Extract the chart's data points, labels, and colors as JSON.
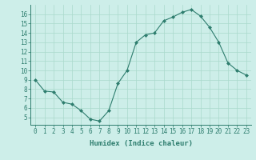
{
  "x": [
    0,
    1,
    2,
    3,
    4,
    5,
    6,
    7,
    8,
    9,
    10,
    11,
    12,
    13,
    14,
    15,
    16,
    17,
    18,
    19,
    20,
    21,
    22,
    23
  ],
  "y": [
    9.0,
    7.8,
    7.7,
    6.6,
    6.4,
    5.7,
    4.8,
    4.6,
    5.7,
    8.6,
    10.0,
    13.0,
    13.8,
    14.0,
    15.3,
    15.7,
    16.2,
    16.5,
    15.8,
    14.6,
    13.0,
    10.8,
    10.0,
    9.5
  ],
  "line_color": "#2e7d6e",
  "marker": "D",
  "marker_size": 2,
  "bg_color": "#cdeee9",
  "grid_color": "#aad9cc",
  "xlabel": "Humidex (Indice chaleur)",
  "xlim": [
    -0.5,
    23.5
  ],
  "ylim": [
    4.2,
    17.0
  ],
  "yticks": [
    5,
    6,
    7,
    8,
    9,
    10,
    11,
    12,
    13,
    14,
    15,
    16
  ],
  "xticks": [
    0,
    1,
    2,
    3,
    4,
    5,
    6,
    7,
    8,
    9,
    10,
    11,
    12,
    13,
    14,
    15,
    16,
    17,
    18,
    19,
    20,
    21,
    22,
    23
  ],
  "axis_color": "#2e7d6e",
  "label_fontsize": 6.5,
  "tick_fontsize": 5.5
}
